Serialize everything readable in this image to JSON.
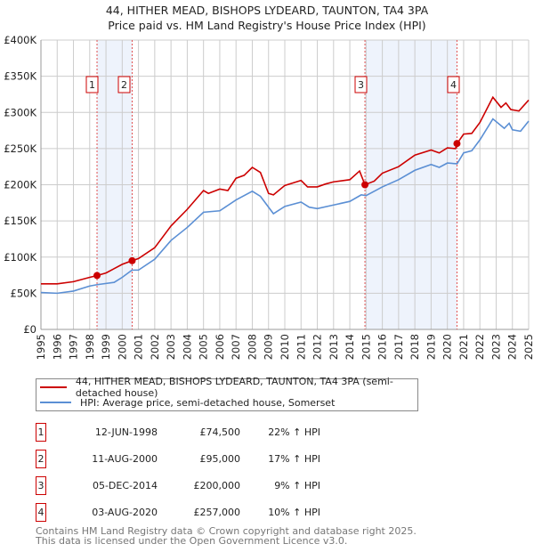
{
  "chart_data": {
    "type": "line",
    "title": "44, HITHER MEAD, BISHOPS LYDEARD, TAUNTON, TA4 3PA",
    "subtitle": "Price paid vs. HM Land Registry's House Price Index (HPI)",
    "xlim": [
      1995,
      2025
    ],
    "ylim": [
      0,
      400000
    ],
    "grid": true,
    "x_ticks": [
      "1995",
      "1996",
      "1997",
      "1998",
      "1999",
      "2000",
      "2001",
      "2002",
      "2003",
      "2004",
      "2005",
      "2006",
      "2007",
      "2008",
      "2009",
      "2010",
      "2011",
      "2012",
      "2013",
      "2014",
      "2015",
      "2016",
      "2017",
      "2018",
      "2019",
      "2020",
      "2021",
      "2022",
      "2023",
      "2024",
      "2025"
    ],
    "y_ticks": [
      {
        "v": 0,
        "label": "£0"
      },
      {
        "v": 50000,
        "label": "£50K"
      },
      {
        "v": 100000,
        "label": "£100K"
      },
      {
        "v": 150000,
        "label": "£150K"
      },
      {
        "v": 200000,
        "label": "£200K"
      },
      {
        "v": 250000,
        "label": "£250K"
      },
      {
        "v": 300000,
        "label": "£300K"
      },
      {
        "v": 350000,
        "label": "£350K"
      },
      {
        "v": 400000,
        "label": "£400K"
      }
    ],
    "shaded_ranges": [
      [
        1998.45,
        2000.61
      ],
      [
        2014.93,
        2020.59
      ]
    ],
    "series": [
      {
        "name": "44, HITHER MEAD, BISHOPS LYDEARD, TAUNTON, TA4 3PA (semi-detached house)",
        "color": "#cc0000",
        "x": [
          1995,
          1996,
          1997,
          1998,
          1998.45,
          1999,
          2000,
          2000.6,
          2001,
          2002,
          2003,
          2004,
          2005,
          2005.3,
          2006,
          2006.5,
          2007,
          2007.5,
          2008,
          2008.5,
          2009,
          2009.3,
          2010,
          2011,
          2011.4,
          2012,
          2012.5,
          2013,
          2014,
          2014.6,
          2014.93,
          2015.5,
          2016,
          2017,
          2018,
          2019,
          2019.5,
          2020,
          2020.5,
          2020.6,
          2021,
          2021.5,
          2022,
          2022.8,
          2023.3,
          2023.6,
          2023.9,
          2024.4,
          2025
        ],
        "y": [
          63000,
          63000,
          66000,
          72000,
          74500,
          78000,
          90000,
          95000,
          98000,
          113000,
          143000,
          166000,
          192000,
          188000,
          194000,
          192000,
          209000,
          213000,
          224000,
          217000,
          188000,
          186000,
          199000,
          206000,
          197000,
          197000,
          201000,
          204000,
          207000,
          219000,
          200000,
          205000,
          216000,
          225000,
          241000,
          248000,
          244000,
          251000,
          250000,
          257000,
          270000,
          271000,
          286000,
          321000,
          307000,
          313000,
          304000,
          302000,
          317000
        ]
      },
      {
        "name": "HPI: Average price, semi-detached house, Somerset",
        "color": "#5b8fd4",
        "x": [
          1995,
          1996,
          1997,
          1998,
          1998.5,
          1999.5,
          2000,
          2000.6,
          2001,
          2002,
          2003,
          2004,
          2005,
          2006,
          2007,
          2008,
          2008.5,
          2009.3,
          2010,
          2011,
          2011.5,
          2012,
          2013,
          2014,
          2014.7,
          2015,
          2016,
          2017,
          2018,
          2019,
          2019.5,
          2020,
          2020.6,
          2021,
          2021.5,
          2022,
          2022.8,
          2023.5,
          2023.8,
          2024,
          2024.5,
          2025
        ],
        "y": [
          51000,
          50000,
          53000,
          60000,
          62000,
          65000,
          72000,
          82000,
          82000,
          97000,
          123000,
          141000,
          162000,
          164000,
          179000,
          191000,
          184000,
          160000,
          170000,
          176000,
          169000,
          167000,
          172000,
          177000,
          186000,
          185000,
          197000,
          207000,
          220000,
          228000,
          224000,
          230000,
          229000,
          244000,
          247000,
          262000,
          291000,
          278000,
          285000,
          276000,
          274000,
          288000
        ]
      }
    ],
    "sales": [
      {
        "id": "1",
        "x": 1998.45,
        "y": 74500,
        "date": "12-JUN-1998",
        "price": "£74,500",
        "hpi": "22% ↑ HPI"
      },
      {
        "id": "2",
        "x": 2000.61,
        "y": 95000,
        "date": "11-AUG-2000",
        "price": "£95,000",
        "hpi": "17% ↑ HPI"
      },
      {
        "id": "3",
        "x": 2014.93,
        "y": 200000,
        "date": "05-DEC-2014",
        "price": "£200,000",
        "hpi": "9% ↑ HPI"
      },
      {
        "id": "4",
        "x": 2020.59,
        "y": 257000,
        "date": "03-AUG-2020",
        "price": "£257,000",
        "hpi": "10% ↑ HPI"
      }
    ]
  },
  "legend": {
    "property": "44, HITHER MEAD, BISHOPS LYDEARD, TAUNTON, TA4 3PA (semi-detached house)",
    "hpi": "HPI: Average price, semi-detached house, Somerset"
  },
  "footer": {
    "line1": "Contains HM Land Registry data © Crown copyright and database right 2025.",
    "line2": "This data is licensed under the Open Government Licence v3.0."
  }
}
